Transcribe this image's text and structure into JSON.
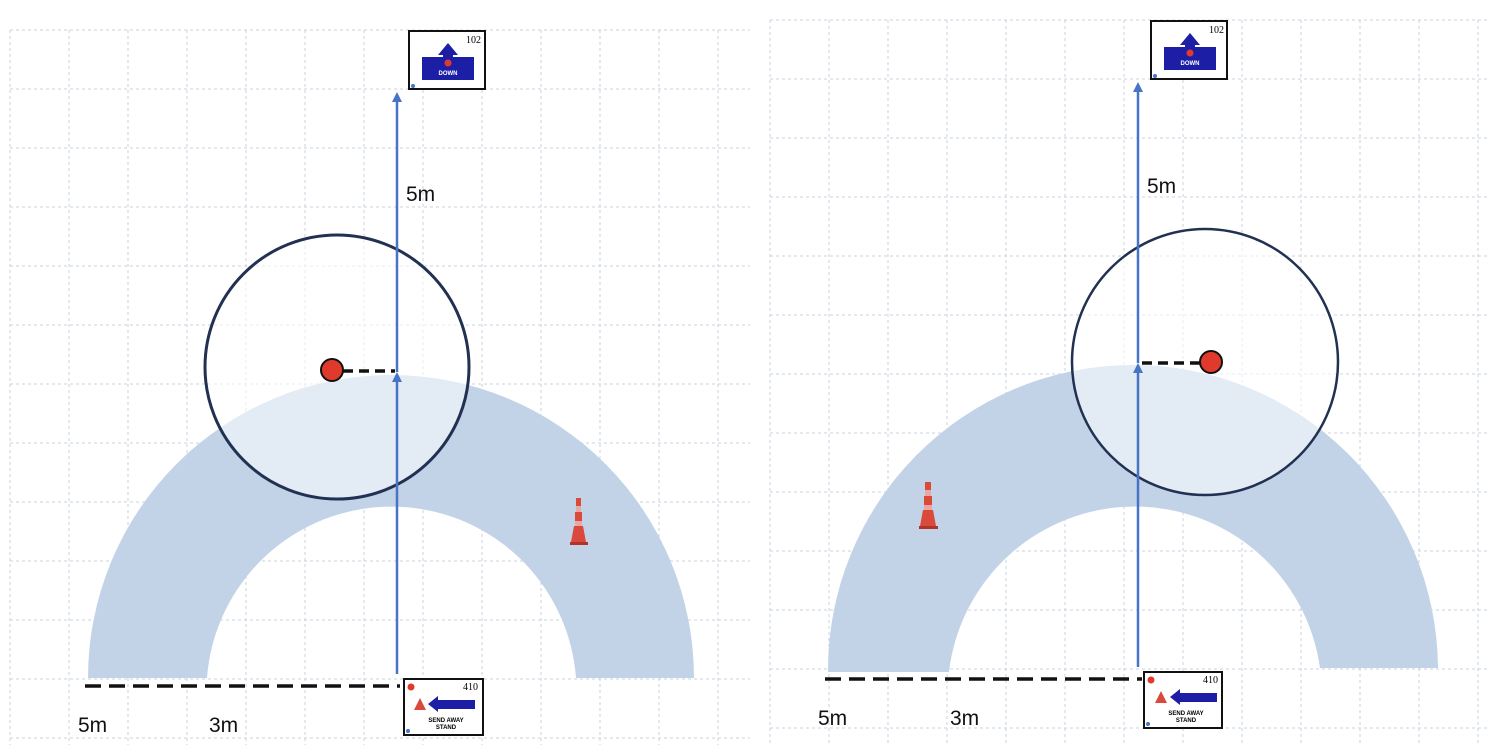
{
  "colors": {
    "grid": "#c9d3e2",
    "band": "#c2d3e8",
    "circle_stroke": "#223152",
    "circle_fill": "#ffffff",
    "path_line": "#4774c4",
    "ball": "#e03a2c",
    "dashed": "#111111",
    "sign_blue": "#1c1fa6",
    "cone": "#d94a3c"
  },
  "panels": [
    {
      "id": "left",
      "top_sign": {
        "number": "102",
        "label": "DOWN",
        "icon": "arrow-up-icon"
      },
      "bottom_sign": {
        "number": "410",
        "label_line1": "SEND AWAY",
        "label_line2": "STAND",
        "icon": "arrow-left-icon"
      },
      "label_upper": "5m",
      "label_left_outer": "5m",
      "label_left_inner": "3m"
    },
    {
      "id": "right",
      "top_sign": {
        "number": "102",
        "label": "DOWN",
        "icon": "arrow-up-icon"
      },
      "bottom_sign": {
        "number": "410",
        "label_line1": "SEND AWAY",
        "label_line2": "STAND",
        "icon": "arrow-left-icon"
      },
      "label_upper": "5m",
      "label_left_outer": "5m",
      "label_left_inner": "3m"
    }
  ]
}
